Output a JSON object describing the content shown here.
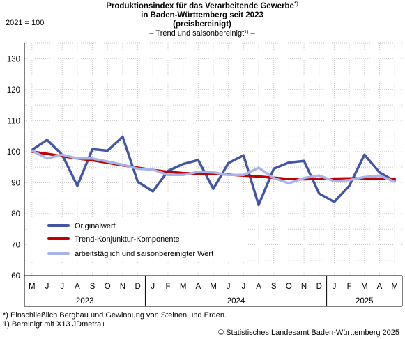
{
  "chart_data": {
    "type": "line",
    "title_line1": "Produktionsindex für das Verarbeitende Gewerbe",
    "title_line1_sup": "*)",
    "title_line2": "in Baden-Württemberg seit 2023",
    "title_line3": "(preisbereinigt)",
    "subtitle_pre": "– Trend und saisonbereinigt",
    "subtitle_sup": "1)",
    "subtitle_post": " –",
    "ylabel": "2021 = 100",
    "ylim": [
      60,
      135
    ],
    "yticks": [
      60,
      70,
      80,
      90,
      100,
      110,
      120,
      130
    ],
    "grid": true,
    "categories": [
      "M",
      "J",
      "J",
      "A",
      "S",
      "O",
      "N",
      "D",
      "J",
      "F",
      "M",
      "A",
      "M",
      "J",
      "J",
      "A",
      "S",
      "O",
      "N",
      "D",
      "J",
      "F",
      "M",
      "A",
      "M"
    ],
    "years": [
      {
        "label": "2023",
        "start": 0,
        "end": 7
      },
      {
        "label": "2024",
        "start": 8,
        "end": 19
      },
      {
        "label": "2025",
        "start": 20,
        "end": 24
      }
    ],
    "legend_position": "bottom-left",
    "series": [
      {
        "name": "Originalwert",
        "color": "#4355a6",
        "width": 3.5,
        "values": [
          100.5,
          103.8,
          99.0,
          89.0,
          100.8,
          100.3,
          104.8,
          90.3,
          87.2,
          93.8,
          96.0,
          97.3,
          88.0,
          96.3,
          98.8,
          82.8,
          94.5,
          96.5,
          97.0,
          86.5,
          83.8,
          89.0,
          99.0,
          93.3,
          90.5
        ]
      },
      {
        "name": "Trend-Konjunktur-Komponente",
        "color": "#c00000",
        "width": 3.5,
        "values": [
          100.0,
          99.3,
          98.5,
          97.8,
          97.2,
          96.4,
          95.6,
          94.8,
          94.1,
          93.5,
          93.1,
          92.9,
          92.8,
          92.6,
          92.3,
          92.0,
          91.6,
          91.2,
          91.1,
          91.2,
          91.3,
          91.4,
          91.4,
          91.3,
          91.2
        ]
      },
      {
        "name": "arbeitstäglich und saisonbereinigter Wert",
        "color": "#a6b4ea",
        "width": 3.5,
        "values": [
          100.3,
          97.8,
          99.0,
          97.8,
          97.8,
          96.8,
          95.8,
          94.5,
          94.2,
          92.5,
          92.5,
          93.5,
          93.3,
          92.5,
          92.5,
          94.8,
          91.5,
          89.8,
          91.5,
          92.3,
          90.5,
          90.8,
          91.8,
          92.3,
          90.3
        ]
      }
    ]
  },
  "footnotes": {
    "note1": "*) Einschließlich Bergbau und Gewinnung von Steinen und Erden.",
    "note2": "1) Bereinigt mit X13 JDmetra+"
  },
  "copyright": "© Statistisches Landesamt Baden-Württemberg 2025"
}
